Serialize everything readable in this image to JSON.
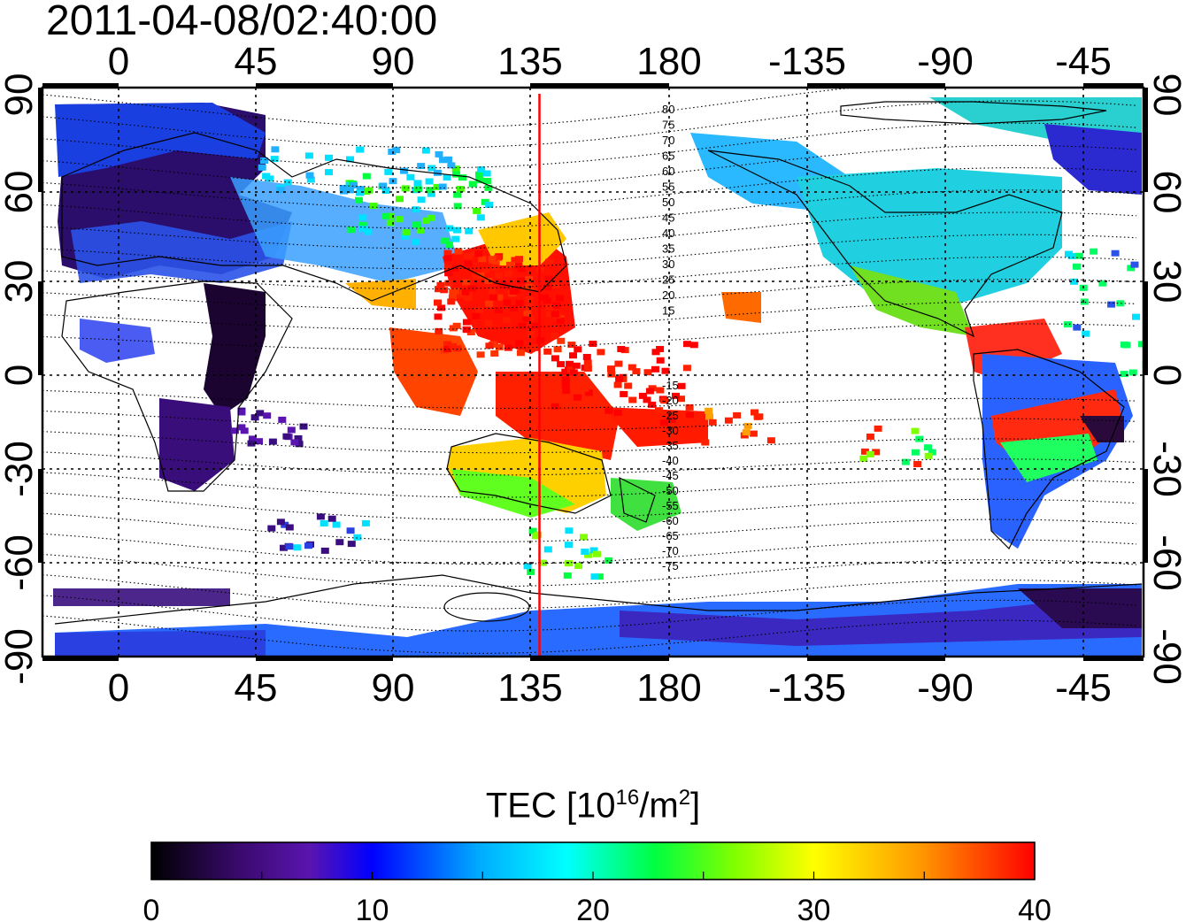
{
  "title": "2011-04-08/02:40:00",
  "map": {
    "lon_ticks_top": [
      "0",
      "45",
      "90",
      "135",
      "180",
      "-135",
      "-90",
      "-45"
    ],
    "lon_ticks_bottom": [
      "0",
      "45",
      "90",
      "135",
      "180",
      "-135",
      "-90",
      "-45"
    ],
    "lat_ticks_left": [
      "90",
      "60",
      "30",
      "0",
      "-30",
      "-60",
      "-90"
    ],
    "lat_ticks_right": [
      "90",
      "60",
      "30",
      "0",
      "-30",
      "-60",
      "-90"
    ],
    "contour_labels_north": [
      "80",
      "75",
      "70",
      "65",
      "60",
      "55",
      "50",
      "45",
      "40",
      "35",
      "30",
      "25",
      "20",
      "15"
    ],
    "contour_labels_south": [
      "-15",
      "-20",
      "-25",
      "-30",
      "-35",
      "-40",
      "-45",
      "-50",
      "-55",
      "-60",
      "-65",
      "-70",
      "-75"
    ],
    "meridian_marker_lon": 138,
    "marker_color": "#ff0000"
  },
  "colorbar": {
    "title_main": "TEC  [10",
    "title_exp": "16",
    "title_unit": "/m",
    "title_unit_exp": "2",
    "title_close": "]",
    "ticks": [
      "0",
      "10",
      "20",
      "30",
      "40"
    ],
    "range": [
      0,
      40
    ],
    "colors": [
      "#000000",
      "#3a0a6e",
      "#5a14b0",
      "#0000ff",
      "#00aaff",
      "#00ffff",
      "#00ff40",
      "#80ff00",
      "#ffff00",
      "#ff9900",
      "#ff0000"
    ]
  }
}
